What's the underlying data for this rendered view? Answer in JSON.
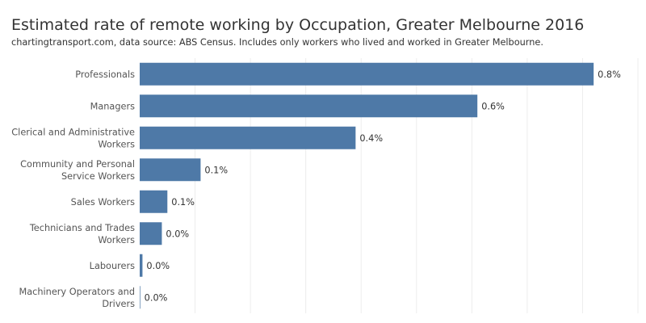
{
  "chart_data": {
    "type": "bar",
    "orientation": "horizontal",
    "title": "Estimated rate of remote working by Occupation, Greater Melbourne 2016",
    "subtitle": "chartingtransport.com, data source: ABS Census. Includes only workers who lived and worked in Greater Melbourne.",
    "categories": [
      [
        "Professionals"
      ],
      [
        "Managers"
      ],
      [
        "Clerical and Administrative",
        "Workers"
      ],
      [
        "Community and Personal",
        "Service Workers"
      ],
      [
        "Sales Workers"
      ],
      [
        "Technicians and Trades",
        "Workers"
      ],
      [
        "Labourers"
      ],
      [
        "Machinery Operators and",
        "Drivers"
      ]
    ],
    "values": [
      0.82,
      0.61,
      0.39,
      0.11,
      0.05,
      0.04,
      0.005,
      0.001
    ],
    "value_labels": [
      "0.8%",
      "0.6%",
      "0.4%",
      "0.1%",
      "0.1%",
      "0.0%",
      "0.0%",
      "0.0%"
    ],
    "xlim": [
      0,
      0.9
    ],
    "bar_color": "#4e79a7",
    "grid": true,
    "legend": "none"
  }
}
